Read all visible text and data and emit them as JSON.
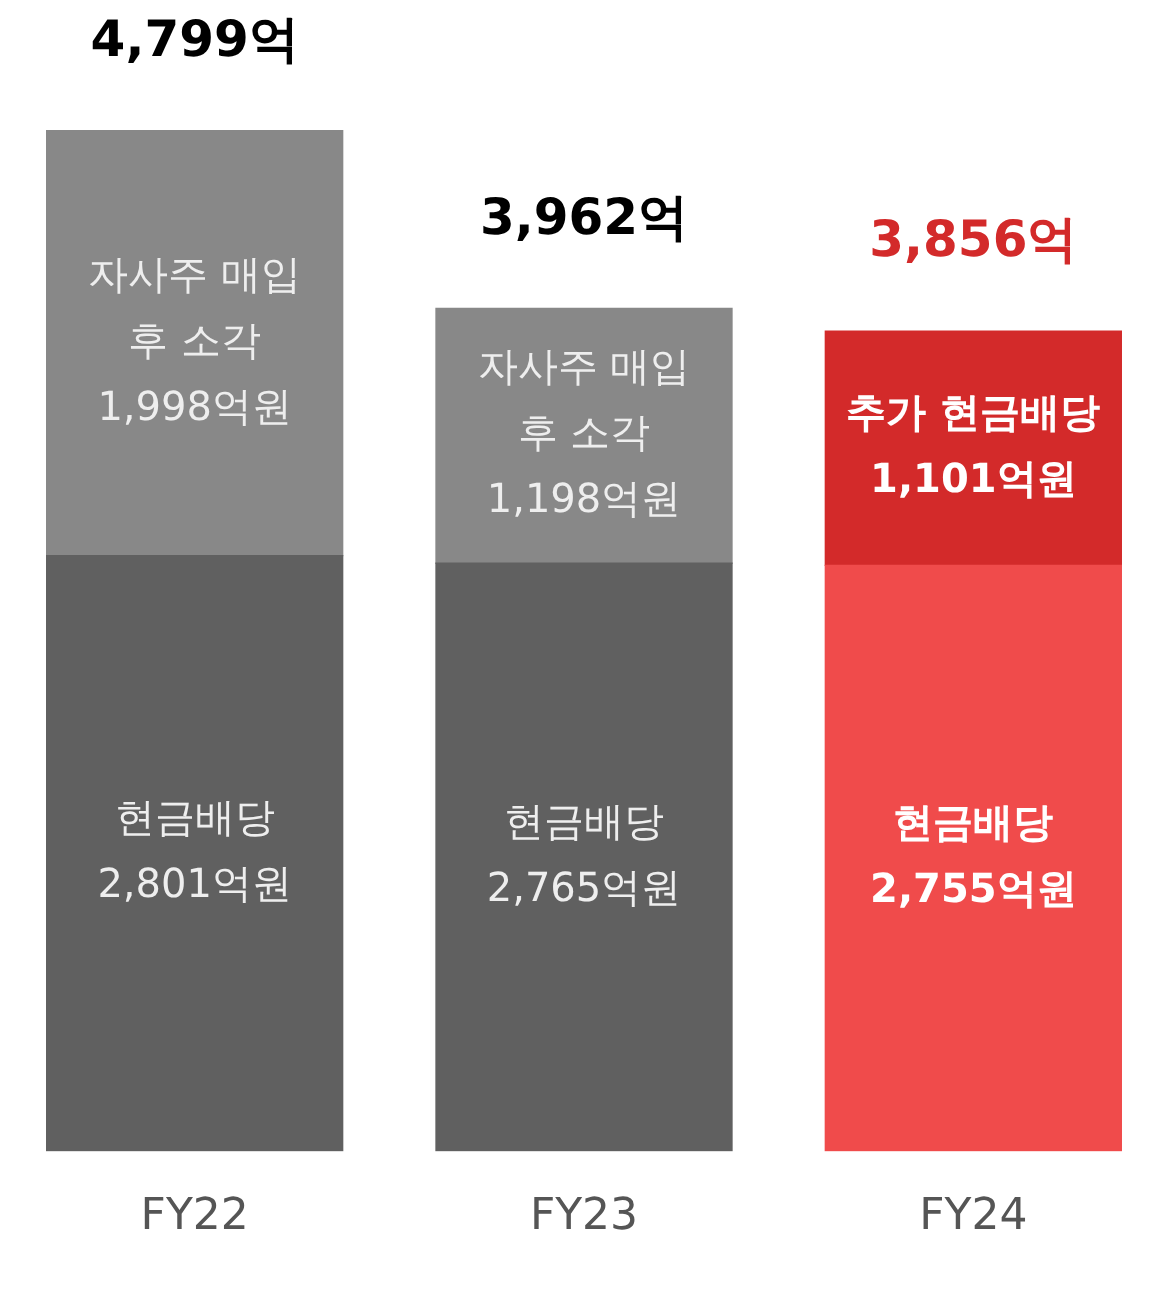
{
  "chart_data": {
    "type": "bar",
    "stacked": true,
    "categories": [
      "FY22",
      "FY23",
      "FY24"
    ],
    "series": [
      {
        "colors": [
          "#606060",
          "#606060",
          "#f04b4b"
        ],
        "values": [
          2801,
          2765,
          2755
        ],
        "value_labels": [
          "현금배당\n2,801억원",
          "현금배당\n2,765억원",
          "현금배당\n2,755억원"
        ]
      },
      {
        "colors": [
          "#888888",
          "#888888",
          "#d32a2a"
        ],
        "values": [
          1998,
          1198,
          1101
        ],
        "value_labels": [
          "자사주 매입\n후 소각\n1,998억원",
          "자사주 매입\n후 소각\n1,198억원",
          "추가 현금배당\n1,101억원"
        ]
      }
    ],
    "totals": [
      "4,799억",
      "3,962억",
      "3,856억"
    ],
    "tick_labels": "x",
    "grid": false,
    "legend": false
  }
}
